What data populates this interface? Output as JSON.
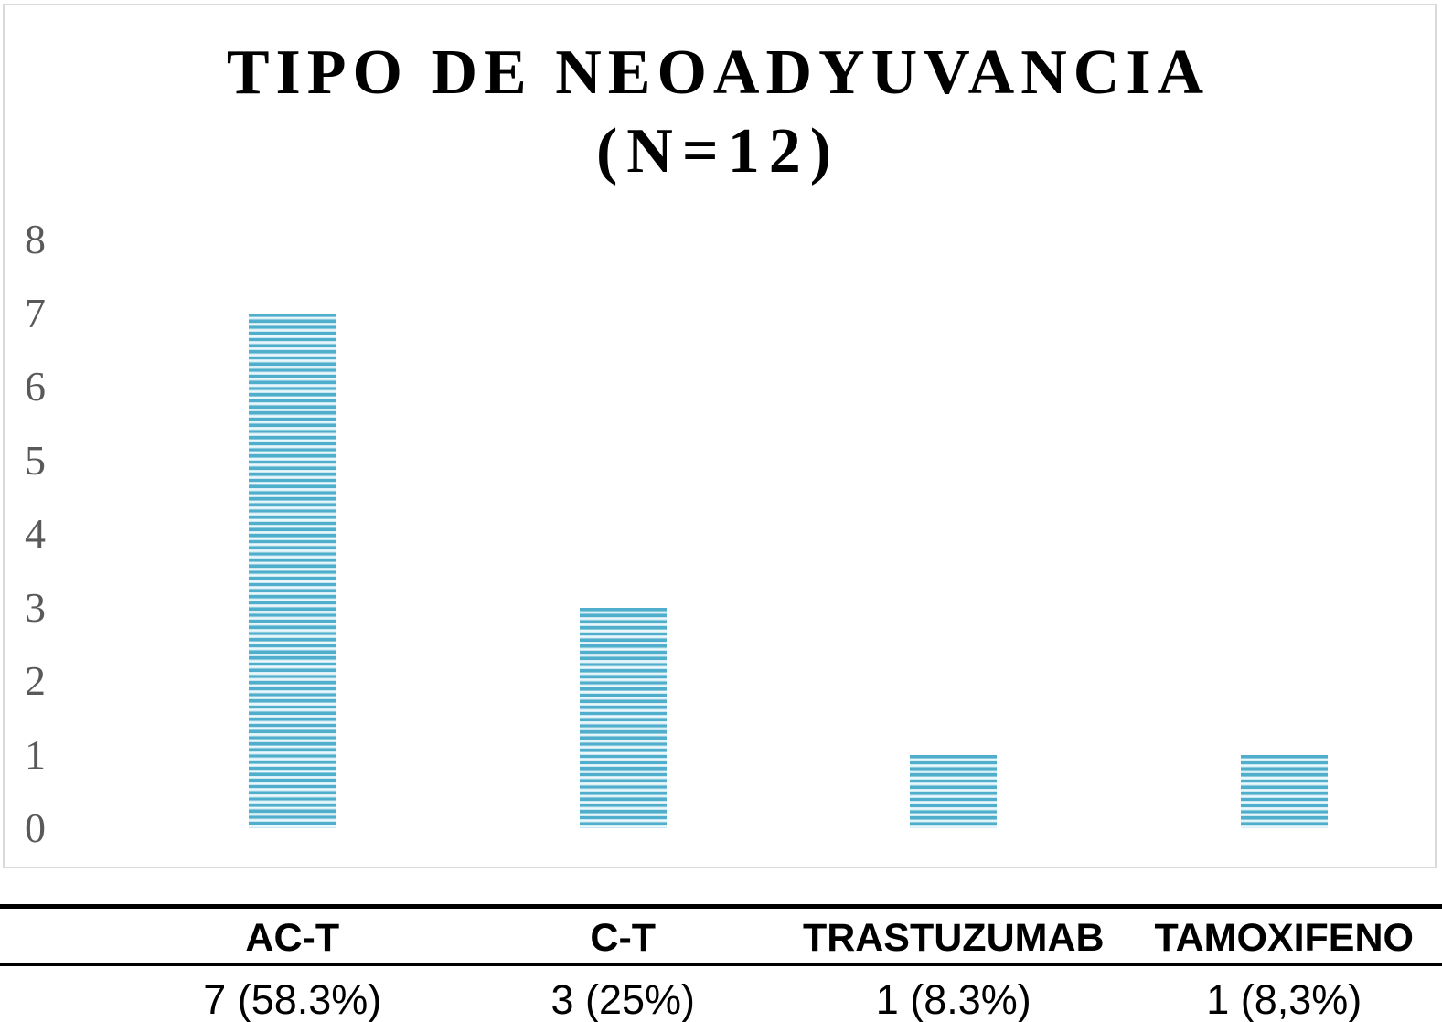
{
  "chart_data": {
    "type": "bar",
    "title": "TIPO DE NEOADYUVANCIA (N=12)",
    "title_line1": "TIPO DE NEOADYUVANCIA",
    "title_line2": "(N=12)",
    "categories": [
      "AC-T",
      "C-T",
      "TRASTUZUMAB",
      "TAMOXIFENO"
    ],
    "values": [
      7,
      3,
      1,
      1
    ],
    "value_labels": [
      "7 (58.3%)",
      "3 (25%)",
      "1 (8.3%)",
      "1 (8,3%)"
    ],
    "xlabel": "",
    "ylabel": "",
    "ylim": [
      0,
      8
    ],
    "yticks": [
      0,
      1,
      2,
      3,
      4,
      5,
      6,
      7,
      8
    ],
    "grid": false,
    "legend": false,
    "bar_pattern": "horizontal-stripes",
    "colors": {
      "bar_stripe_dark": "#4faecb",
      "bar_stripe_mid": "#c9e8f2",
      "bar_stripe_light": "#eaf7fb",
      "axis_tick_text": "#595959",
      "frame_border": "#d9d9d9",
      "title_text": "#000000",
      "table_text": "#000000",
      "table_rule": "#000000",
      "background": "#ffffff"
    }
  },
  "table": {
    "headers": [
      "AC-T",
      "C-T",
      "TRASTUZUMAB",
      "TAMOXIFENO"
    ],
    "values": [
      "7 (58.3%)",
      "3 (25%)",
      "1 (8.3%)",
      "1 (8,3%)"
    ]
  }
}
